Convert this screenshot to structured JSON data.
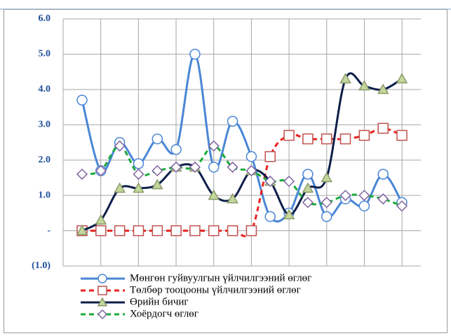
{
  "chart_data": {
    "type": "line",
    "categories": [
      null,
      null,
      null,
      null,
      null,
      null,
      null,
      null,
      null,
      null,
      null,
      null,
      null,
      null,
      null,
      null,
      null,
      null
    ],
    "series": [
      {
        "name": "Мөнгөн гуйвуулгын үйлчилгээний өглөг",
        "color": "#4a86d6",
        "marker": "circle",
        "dashed": false,
        "smooth": true,
        "values": [
          3.7,
          1.7,
          2.5,
          1.9,
          2.6,
          2.3,
          5.0,
          1.8,
          3.1,
          2.1,
          0.4,
          0.5,
          1.6,
          0.4,
          0.9,
          0.7,
          1.6,
          0.8
        ]
      },
      {
        "name": "Төлбөр тооцооны үйлчилгээний өглөг",
        "color": "#e8231f",
        "marker": "square",
        "dashed": true,
        "smooth": true,
        "values": [
          0,
          0,
          0,
          0,
          0,
          0,
          0,
          0,
          0,
          0,
          2.1,
          2.7,
          2.6,
          2.6,
          2.6,
          2.7,
          2.9,
          2.7
        ]
      },
      {
        "name": "Өрийн бичиг",
        "color": "#0d1f4a",
        "marker": "triangle",
        "dashed": false,
        "smooth": true,
        "values": [
          0,
          0.3,
          1.2,
          1.2,
          1.3,
          1.8,
          1.8,
          1.0,
          0.9,
          1.7,
          1.4,
          0.45,
          1.2,
          1.5,
          4.3,
          4.1,
          4.0,
          4.3
        ]
      },
      {
        "name": "Хоёрдогч өглөг",
        "color": "#1aab3a",
        "marker": "diamond",
        "dashed": true,
        "smooth": true,
        "values": [
          1.6,
          1.7,
          2.4,
          1.6,
          1.7,
          1.8,
          1.8,
          2.4,
          1.8,
          1.7,
          1.4,
          1.4,
          0.8,
          0.8,
          1.0,
          1.0,
          0.9,
          0.7
        ]
      }
    ],
    "ylim": [
      -1,
      6
    ],
    "yticks": [
      {
        "value": -1,
        "label": "(1.0)"
      },
      {
        "value": 0,
        "label": "-"
      },
      {
        "value": 1,
        "label": "1.0"
      },
      {
        "value": 2,
        "label": "2.0"
      },
      {
        "value": 3,
        "label": "3.0"
      },
      {
        "value": 4,
        "label": "4.0"
      },
      {
        "value": 5,
        "label": "5.0"
      },
      {
        "value": 6,
        "label": "6.0"
      }
    ],
    "grid": true
  }
}
